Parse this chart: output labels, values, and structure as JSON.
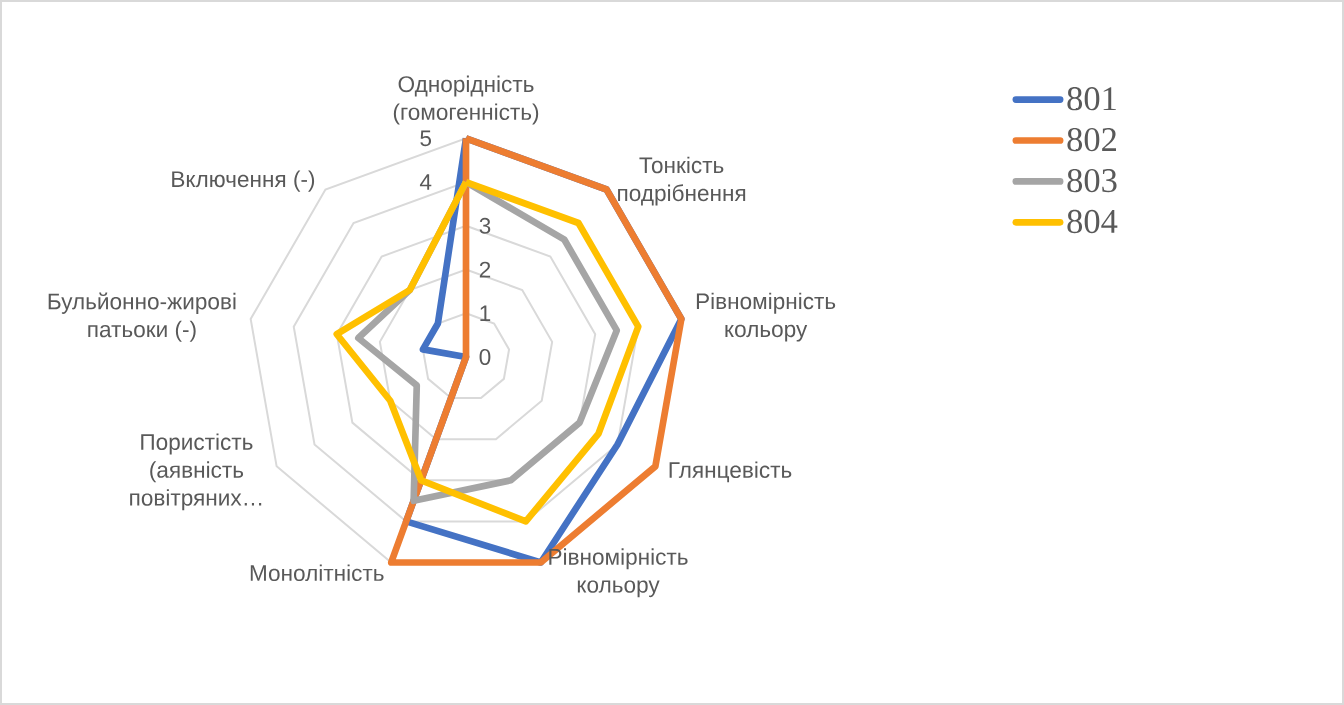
{
  "chart_data": {
    "type": "radar",
    "categories": [
      "Однорідність (гомогенність)",
      "Тонкість подрібнення",
      "Рівномірність кольору",
      "Глянцевість",
      "Рівномірність кольору",
      "Монолітність",
      "Пористість (аявність повітряних…",
      "Бульйонно-жирові патьоки (-)",
      "Включення (-)"
    ],
    "series": [
      {
        "name": "801",
        "color": "#4472c4",
        "values": [
          5,
          5,
          5,
          4,
          5,
          4,
          0,
          1,
          1
        ]
      },
      {
        "name": "802",
        "color": "#ed7d31",
        "values": [
          5,
          5,
          5,
          5,
          5,
          5,
          0,
          0,
          0
        ]
      },
      {
        "name": "803",
        "color": "#a5a5a5",
        "values": [
          4,
          3.5,
          3.5,
          3,
          3,
          3.5,
          1.3,
          2.5,
          2
        ]
      },
      {
        "name": "804",
        "color": "#ffc000",
        "values": [
          4,
          4,
          4,
          3.5,
          4,
          3,
          2,
          3,
          2
        ]
      }
    ],
    "ylim": [
      0,
      5
    ],
    "yticks": [
      0,
      1,
      2,
      3,
      4,
      5
    ],
    "grid": true,
    "legend": "right"
  }
}
